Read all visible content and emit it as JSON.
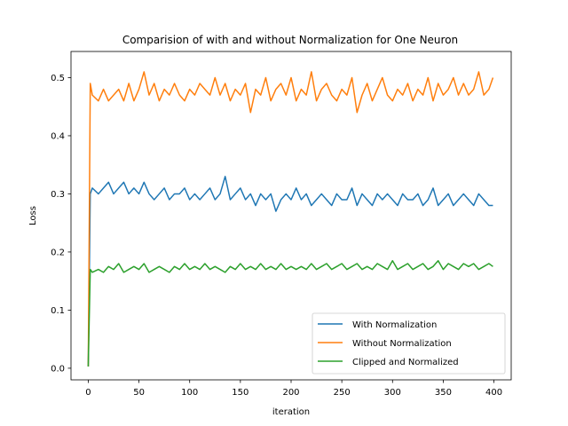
{
  "chart_data": {
    "type": "line",
    "title": "Comparision of with and without Normalization for One Neuron",
    "xlabel": "iteration",
    "ylabel": "Loss",
    "xlim": [
      -17,
      417
    ],
    "ylim": [
      -0.02,
      0.545
    ],
    "xticks": [
      0,
      50,
      100,
      150,
      200,
      250,
      300,
      350,
      400
    ],
    "yticks": [
      0.0,
      0.1,
      0.2,
      0.3,
      0.4,
      0.5
    ],
    "grid": false,
    "legend_position": "lower-right",
    "series": [
      {
        "name": "With Normalization",
        "color": "#1f77b4",
        "x": [
          0,
          2,
          4,
          10,
          15,
          20,
          25,
          30,
          35,
          40,
          45,
          50,
          55,
          60,
          65,
          70,
          75,
          80,
          85,
          90,
          95,
          100,
          105,
          110,
          115,
          120,
          125,
          130,
          135,
          140,
          145,
          150,
          155,
          160,
          165,
          170,
          175,
          180,
          185,
          190,
          195,
          200,
          205,
          210,
          215,
          220,
          225,
          230,
          235,
          240,
          245,
          250,
          255,
          260,
          265,
          270,
          275,
          280,
          285,
          290,
          295,
          300,
          305,
          310,
          315,
          320,
          325,
          330,
          335,
          340,
          345,
          350,
          355,
          360,
          365,
          370,
          375,
          380,
          385,
          390,
          395,
          399
        ],
        "values": [
          0.003,
          0.3,
          0.31,
          0.3,
          0.31,
          0.32,
          0.3,
          0.31,
          0.32,
          0.3,
          0.31,
          0.3,
          0.32,
          0.3,
          0.29,
          0.3,
          0.31,
          0.29,
          0.3,
          0.3,
          0.31,
          0.29,
          0.3,
          0.29,
          0.3,
          0.31,
          0.29,
          0.3,
          0.33,
          0.29,
          0.3,
          0.31,
          0.29,
          0.3,
          0.28,
          0.3,
          0.29,
          0.3,
          0.27,
          0.29,
          0.3,
          0.29,
          0.31,
          0.29,
          0.3,
          0.28,
          0.29,
          0.3,
          0.29,
          0.28,
          0.3,
          0.29,
          0.29,
          0.31,
          0.28,
          0.3,
          0.29,
          0.28,
          0.3,
          0.29,
          0.3,
          0.29,
          0.28,
          0.3,
          0.29,
          0.29,
          0.3,
          0.28,
          0.29,
          0.31,
          0.28,
          0.29,
          0.3,
          0.28,
          0.29,
          0.3,
          0.29,
          0.28,
          0.3,
          0.29,
          0.28,
          0.28
        ]
      },
      {
        "name": "Without Normalization",
        "color": "#ff7f0e",
        "x": [
          0,
          2,
          4,
          10,
          15,
          20,
          25,
          30,
          35,
          40,
          45,
          50,
          55,
          60,
          65,
          70,
          75,
          80,
          85,
          90,
          95,
          100,
          105,
          110,
          115,
          120,
          125,
          130,
          135,
          140,
          145,
          150,
          155,
          160,
          165,
          170,
          175,
          180,
          185,
          190,
          195,
          200,
          205,
          210,
          215,
          220,
          225,
          230,
          235,
          240,
          245,
          250,
          255,
          260,
          265,
          270,
          275,
          280,
          285,
          290,
          295,
          300,
          305,
          310,
          315,
          320,
          325,
          330,
          335,
          340,
          345,
          350,
          355,
          360,
          365,
          370,
          375,
          380,
          385,
          390,
          395,
          399
        ],
        "values": [
          0.003,
          0.49,
          0.47,
          0.46,
          0.48,
          0.46,
          0.47,
          0.48,
          0.46,
          0.49,
          0.46,
          0.48,
          0.51,
          0.47,
          0.49,
          0.46,
          0.48,
          0.47,
          0.49,
          0.47,
          0.46,
          0.48,
          0.47,
          0.49,
          0.48,
          0.47,
          0.5,
          0.47,
          0.49,
          0.46,
          0.48,
          0.47,
          0.49,
          0.44,
          0.48,
          0.47,
          0.5,
          0.46,
          0.48,
          0.49,
          0.47,
          0.5,
          0.46,
          0.48,
          0.47,
          0.51,
          0.46,
          0.48,
          0.49,
          0.47,
          0.46,
          0.48,
          0.47,
          0.5,
          0.44,
          0.47,
          0.49,
          0.46,
          0.48,
          0.5,
          0.47,
          0.46,
          0.48,
          0.47,
          0.49,
          0.46,
          0.48,
          0.47,
          0.5,
          0.46,
          0.49,
          0.47,
          0.48,
          0.5,
          0.47,
          0.49,
          0.47,
          0.48,
          0.51,
          0.47,
          0.48,
          0.5
        ]
      },
      {
        "name": "Clipped and Normalized",
        "color": "#2ca02c",
        "x": [
          0,
          2,
          4,
          10,
          15,
          20,
          25,
          30,
          35,
          40,
          45,
          50,
          55,
          60,
          65,
          70,
          75,
          80,
          85,
          90,
          95,
          100,
          105,
          110,
          115,
          120,
          125,
          130,
          135,
          140,
          145,
          150,
          155,
          160,
          165,
          170,
          175,
          180,
          185,
          190,
          195,
          200,
          205,
          210,
          215,
          220,
          225,
          230,
          235,
          240,
          245,
          250,
          255,
          260,
          265,
          270,
          275,
          280,
          285,
          290,
          295,
          300,
          305,
          310,
          315,
          320,
          325,
          330,
          335,
          340,
          345,
          350,
          355,
          360,
          365,
          370,
          375,
          380,
          385,
          390,
          395,
          399
        ],
        "values": [
          0.003,
          0.17,
          0.165,
          0.17,
          0.165,
          0.175,
          0.17,
          0.18,
          0.165,
          0.17,
          0.175,
          0.17,
          0.18,
          0.165,
          0.17,
          0.175,
          0.17,
          0.165,
          0.175,
          0.17,
          0.18,
          0.17,
          0.175,
          0.17,
          0.18,
          0.17,
          0.175,
          0.17,
          0.165,
          0.175,
          0.17,
          0.18,
          0.17,
          0.175,
          0.17,
          0.18,
          0.17,
          0.175,
          0.17,
          0.18,
          0.17,
          0.175,
          0.17,
          0.175,
          0.17,
          0.18,
          0.17,
          0.175,
          0.18,
          0.17,
          0.175,
          0.18,
          0.17,
          0.175,
          0.18,
          0.17,
          0.175,
          0.17,
          0.18,
          0.175,
          0.17,
          0.185,
          0.17,
          0.175,
          0.18,
          0.17,
          0.175,
          0.18,
          0.17,
          0.175,
          0.185,
          0.17,
          0.18,
          0.175,
          0.17,
          0.18,
          0.175,
          0.18,
          0.17,
          0.175,
          0.18,
          0.175
        ]
      }
    ]
  }
}
